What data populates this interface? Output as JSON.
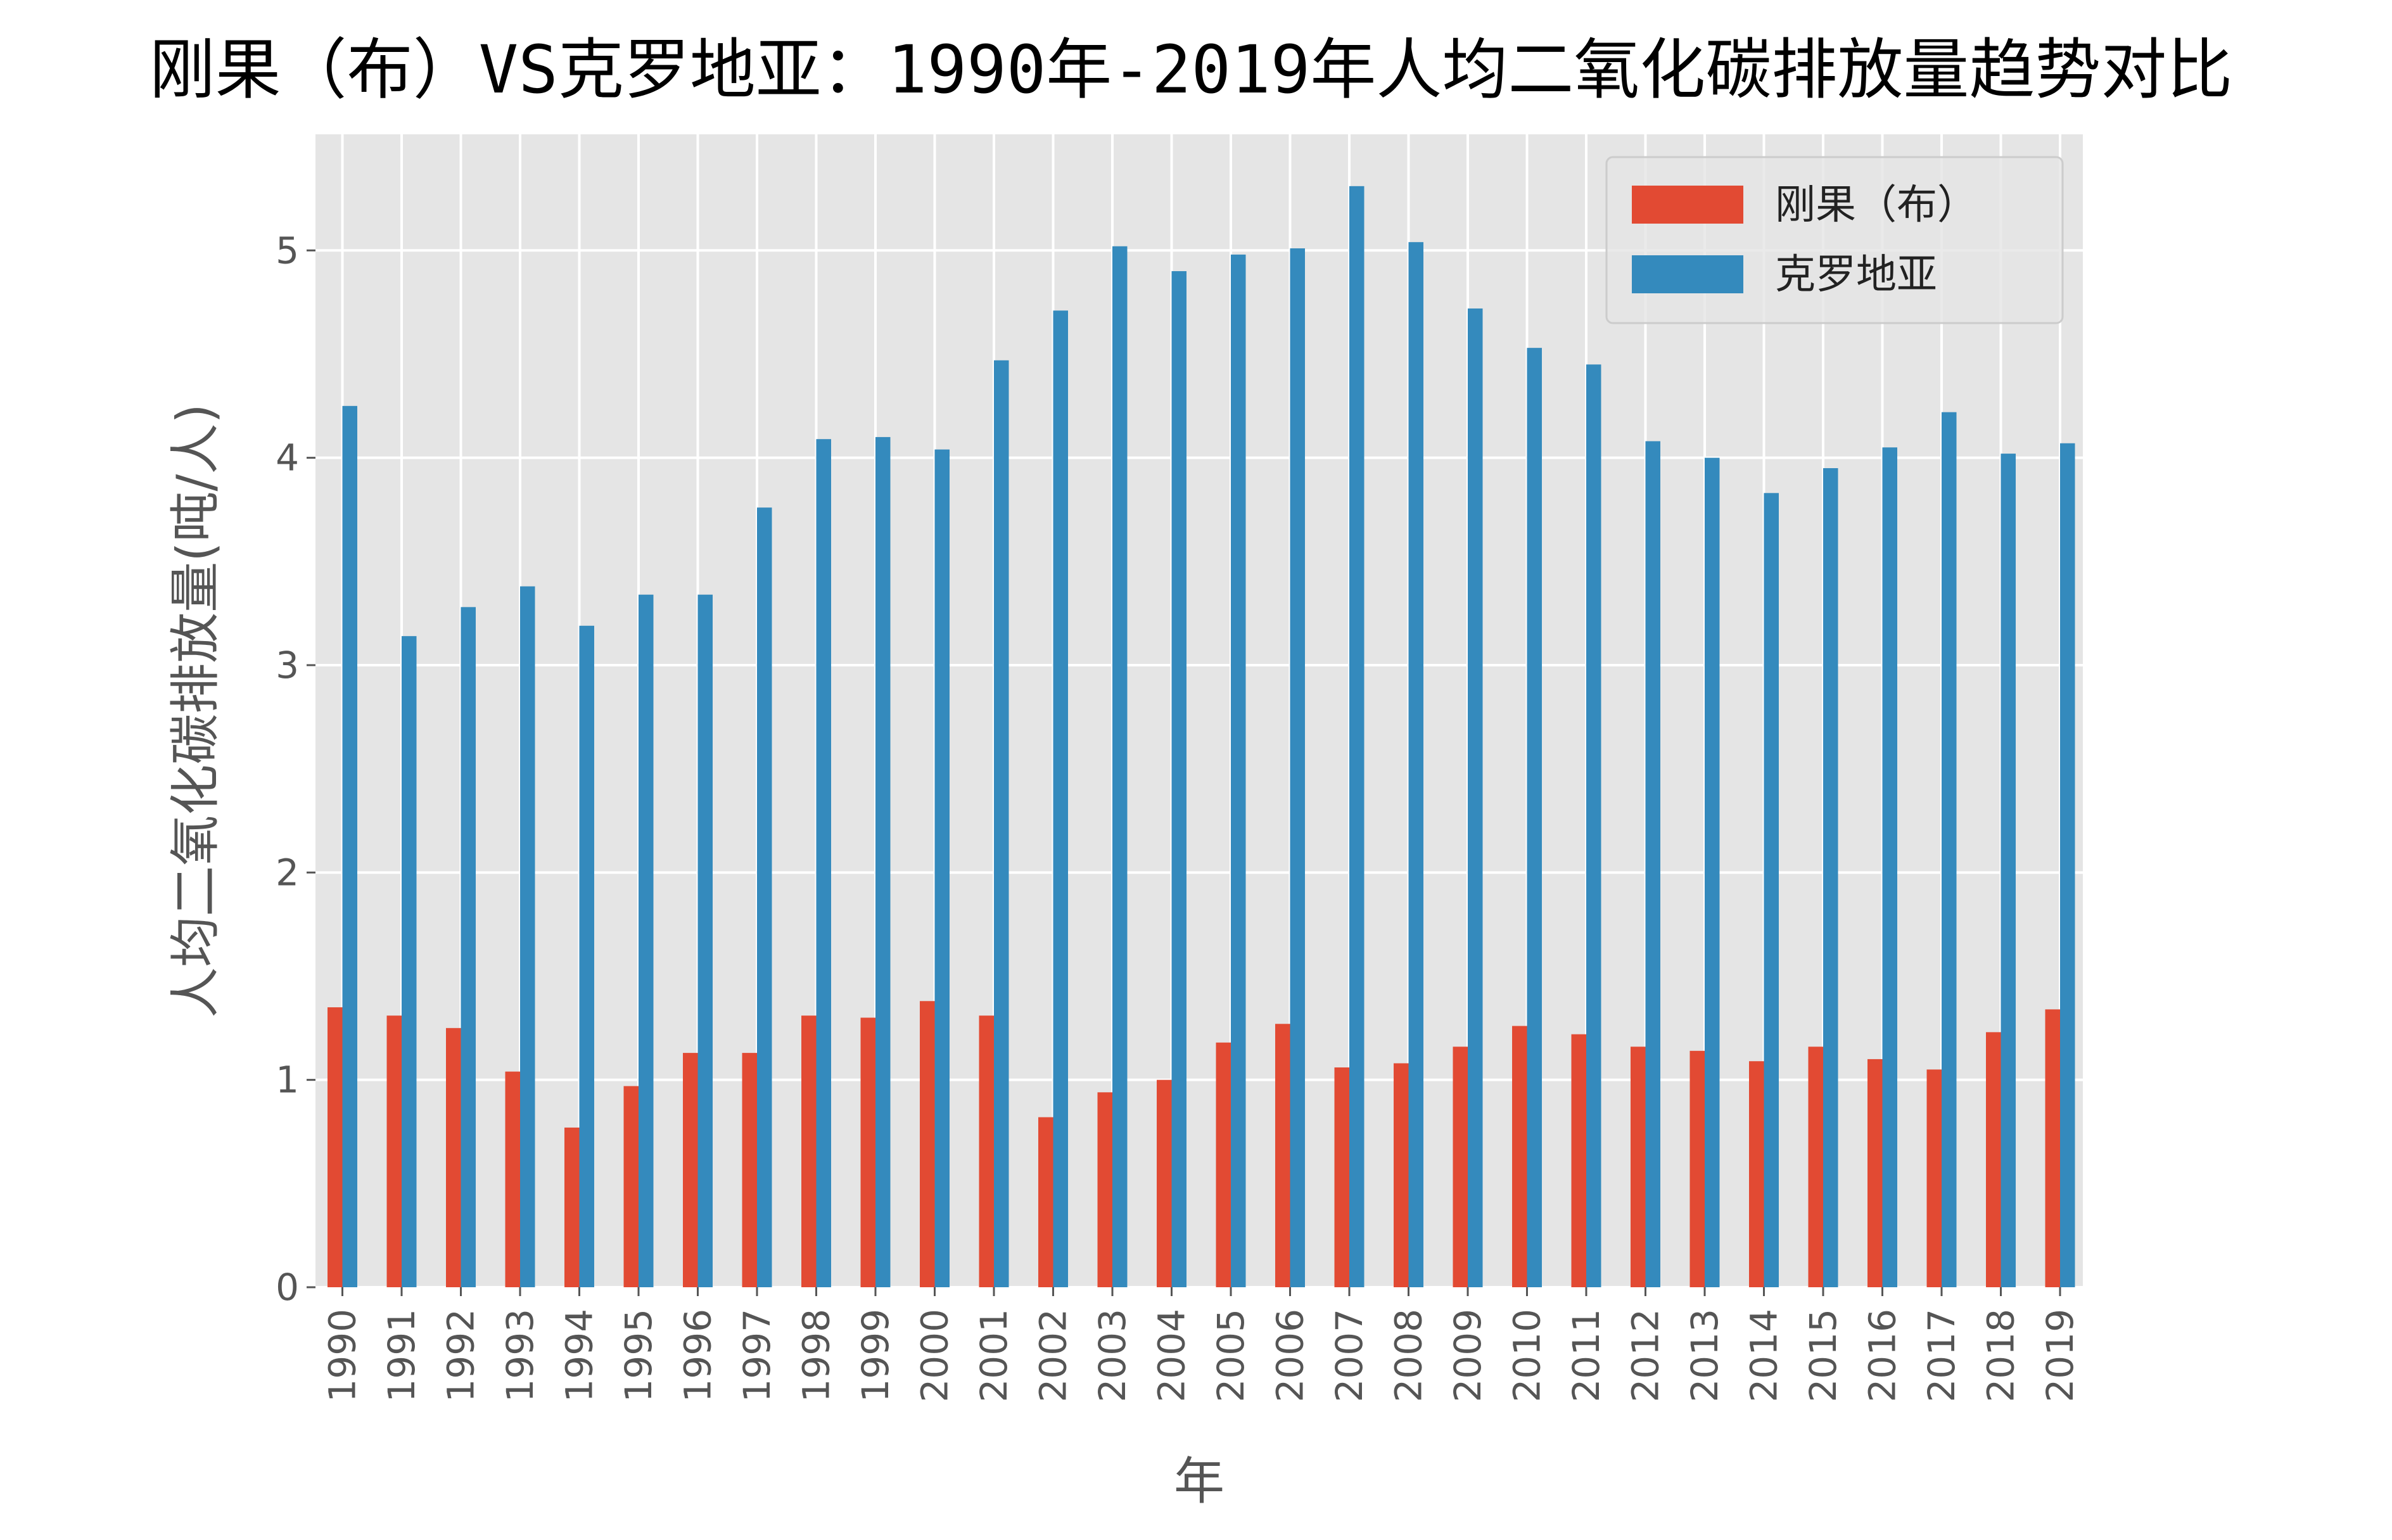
{
  "chart_data": {
    "type": "bar",
    "title": "刚果（布）VS克罗地亚：1990年-2019年人均二氧化碳排放量趋势对比",
    "xlabel": "年",
    "ylabel": "人均二氧化碳排放量(吨/人)",
    "ylim": [
      0,
      5.56
    ],
    "yticks": [
      0,
      1,
      2,
      3,
      4,
      5
    ],
    "grid": true,
    "legend_position": "top-right",
    "categories": [
      "1990",
      "1991",
      "1992",
      "1993",
      "1994",
      "1995",
      "1996",
      "1997",
      "1998",
      "1999",
      "2000",
      "2001",
      "2002",
      "2003",
      "2004",
      "2005",
      "2006",
      "2007",
      "2008",
      "2009",
      "2010",
      "2011",
      "2012",
      "2013",
      "2014",
      "2015",
      "2016",
      "2017",
      "2018",
      "2019"
    ],
    "series": [
      {
        "name": "刚果（布）",
        "color": "#E24A33",
        "values": [
          1.35,
          1.31,
          1.25,
          1.04,
          0.77,
          0.97,
          1.13,
          1.13,
          1.31,
          1.3,
          1.38,
          1.31,
          0.82,
          0.94,
          1.0,
          1.18,
          1.27,
          1.06,
          1.08,
          1.16,
          1.26,
          1.22,
          1.16,
          1.14,
          1.09,
          1.16,
          1.1,
          1.05,
          1.23,
          1.34
        ]
      },
      {
        "name": "克罗地亚",
        "color": "#348ABD",
        "values": [
          4.25,
          3.14,
          3.28,
          3.38,
          3.19,
          3.34,
          3.34,
          3.76,
          4.09,
          4.1,
          4.04,
          4.47,
          4.71,
          5.02,
          4.9,
          4.98,
          5.01,
          5.31,
          5.04,
          4.72,
          4.53,
          4.45,
          4.08,
          4.0,
          3.83,
          3.95,
          4.05,
          4.22,
          4.02,
          4.07
        ]
      }
    ]
  }
}
